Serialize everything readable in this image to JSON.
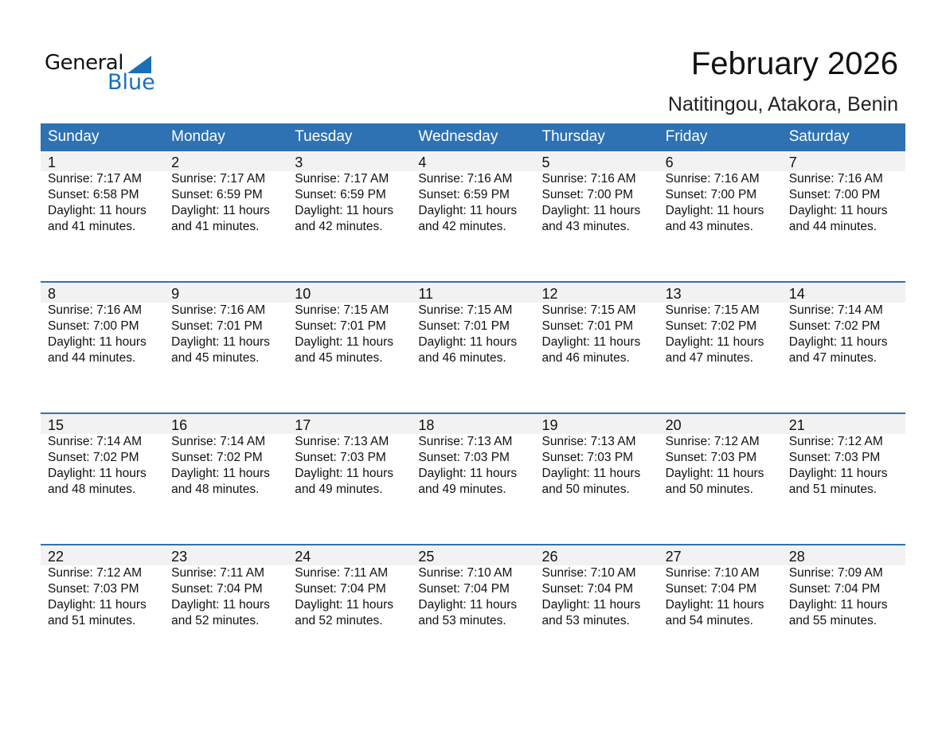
{
  "logo": {
    "text_top": "General",
    "text_bottom": "Blue"
  },
  "title": "February 2026",
  "subtitle": "Natitingou, Atakora, Benin",
  "colors": {
    "header": "#2e72b3",
    "brand": "#1a6fb8",
    "day_band": "#f2f2f2"
  },
  "weekdays": [
    "Sunday",
    "Monday",
    "Tuesday",
    "Wednesday",
    "Thursday",
    "Friday",
    "Saturday"
  ],
  "weeks": [
    [
      {
        "day": "1",
        "sunrise": "Sunrise: 7:17 AM",
        "sunset": "Sunset: 6:58 PM",
        "daylight1": "Daylight: 11 hours",
        "daylight2": "and 41 minutes."
      },
      {
        "day": "2",
        "sunrise": "Sunrise: 7:17 AM",
        "sunset": "Sunset: 6:59 PM",
        "daylight1": "Daylight: 11 hours",
        "daylight2": "and 41 minutes."
      },
      {
        "day": "3",
        "sunrise": "Sunrise: 7:17 AM",
        "sunset": "Sunset: 6:59 PM",
        "daylight1": "Daylight: 11 hours",
        "daylight2": "and 42 minutes."
      },
      {
        "day": "4",
        "sunrise": "Sunrise: 7:16 AM",
        "sunset": "Sunset: 6:59 PM",
        "daylight1": "Daylight: 11 hours",
        "daylight2": "and 42 minutes."
      },
      {
        "day": "5",
        "sunrise": "Sunrise: 7:16 AM",
        "sunset": "Sunset: 7:00 PM",
        "daylight1": "Daylight: 11 hours",
        "daylight2": "and 43 minutes."
      },
      {
        "day": "6",
        "sunrise": "Sunrise: 7:16 AM",
        "sunset": "Sunset: 7:00 PM",
        "daylight1": "Daylight: 11 hours",
        "daylight2": "and 43 minutes."
      },
      {
        "day": "7",
        "sunrise": "Sunrise: 7:16 AM",
        "sunset": "Sunset: 7:00 PM",
        "daylight1": "Daylight: 11 hours",
        "daylight2": "and 44 minutes."
      }
    ],
    [
      {
        "day": "8",
        "sunrise": "Sunrise: 7:16 AM",
        "sunset": "Sunset: 7:00 PM",
        "daylight1": "Daylight: 11 hours",
        "daylight2": "and 44 minutes."
      },
      {
        "day": "9",
        "sunrise": "Sunrise: 7:16 AM",
        "sunset": "Sunset: 7:01 PM",
        "daylight1": "Daylight: 11 hours",
        "daylight2": "and 45 minutes."
      },
      {
        "day": "10",
        "sunrise": "Sunrise: 7:15 AM",
        "sunset": "Sunset: 7:01 PM",
        "daylight1": "Daylight: 11 hours",
        "daylight2": "and 45 minutes."
      },
      {
        "day": "11",
        "sunrise": "Sunrise: 7:15 AM",
        "sunset": "Sunset: 7:01 PM",
        "daylight1": "Daylight: 11 hours",
        "daylight2": "and 46 minutes."
      },
      {
        "day": "12",
        "sunrise": "Sunrise: 7:15 AM",
        "sunset": "Sunset: 7:01 PM",
        "daylight1": "Daylight: 11 hours",
        "daylight2": "and 46 minutes."
      },
      {
        "day": "13",
        "sunrise": "Sunrise: 7:15 AM",
        "sunset": "Sunset: 7:02 PM",
        "daylight1": "Daylight: 11 hours",
        "daylight2": "and 47 minutes."
      },
      {
        "day": "14",
        "sunrise": "Sunrise: 7:14 AM",
        "sunset": "Sunset: 7:02 PM",
        "daylight1": "Daylight: 11 hours",
        "daylight2": "and 47 minutes."
      }
    ],
    [
      {
        "day": "15",
        "sunrise": "Sunrise: 7:14 AM",
        "sunset": "Sunset: 7:02 PM",
        "daylight1": "Daylight: 11 hours",
        "daylight2": "and 48 minutes."
      },
      {
        "day": "16",
        "sunrise": "Sunrise: 7:14 AM",
        "sunset": "Sunset: 7:02 PM",
        "daylight1": "Daylight: 11 hours",
        "daylight2": "and 48 minutes."
      },
      {
        "day": "17",
        "sunrise": "Sunrise: 7:13 AM",
        "sunset": "Sunset: 7:03 PM",
        "daylight1": "Daylight: 11 hours",
        "daylight2": "and 49 minutes."
      },
      {
        "day": "18",
        "sunrise": "Sunrise: 7:13 AM",
        "sunset": "Sunset: 7:03 PM",
        "daylight1": "Daylight: 11 hours",
        "daylight2": "and 49 minutes."
      },
      {
        "day": "19",
        "sunrise": "Sunrise: 7:13 AM",
        "sunset": "Sunset: 7:03 PM",
        "daylight1": "Daylight: 11 hours",
        "daylight2": "and 50 minutes."
      },
      {
        "day": "20",
        "sunrise": "Sunrise: 7:12 AM",
        "sunset": "Sunset: 7:03 PM",
        "daylight1": "Daylight: 11 hours",
        "daylight2": "and 50 minutes."
      },
      {
        "day": "21",
        "sunrise": "Sunrise: 7:12 AM",
        "sunset": "Sunset: 7:03 PM",
        "daylight1": "Daylight: 11 hours",
        "daylight2": "and 51 minutes."
      }
    ],
    [
      {
        "day": "22",
        "sunrise": "Sunrise: 7:12 AM",
        "sunset": "Sunset: 7:03 PM",
        "daylight1": "Daylight: 11 hours",
        "daylight2": "and 51 minutes."
      },
      {
        "day": "23",
        "sunrise": "Sunrise: 7:11 AM",
        "sunset": "Sunset: 7:04 PM",
        "daylight1": "Daylight: 11 hours",
        "daylight2": "and 52 minutes."
      },
      {
        "day": "24",
        "sunrise": "Sunrise: 7:11 AM",
        "sunset": "Sunset: 7:04 PM",
        "daylight1": "Daylight: 11 hours",
        "daylight2": "and 52 minutes."
      },
      {
        "day": "25",
        "sunrise": "Sunrise: 7:10 AM",
        "sunset": "Sunset: 7:04 PM",
        "daylight1": "Daylight: 11 hours",
        "daylight2": "and 53 minutes."
      },
      {
        "day": "26",
        "sunrise": "Sunrise: 7:10 AM",
        "sunset": "Sunset: 7:04 PM",
        "daylight1": "Daylight: 11 hours",
        "daylight2": "and 53 minutes."
      },
      {
        "day": "27",
        "sunrise": "Sunrise: 7:10 AM",
        "sunset": "Sunset: 7:04 PM",
        "daylight1": "Daylight: 11 hours",
        "daylight2": "and 54 minutes."
      },
      {
        "day": "28",
        "sunrise": "Sunrise: 7:09 AM",
        "sunset": "Sunset: 7:04 PM",
        "daylight1": "Daylight: 11 hours",
        "daylight2": "and 55 minutes."
      }
    ]
  ]
}
